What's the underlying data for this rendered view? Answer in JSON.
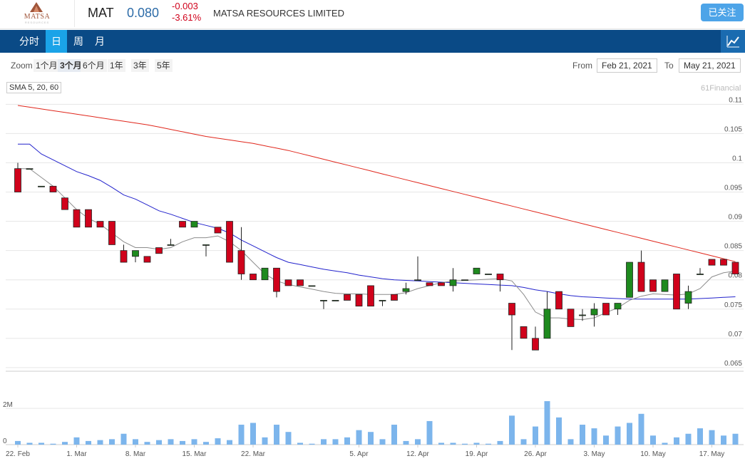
{
  "header": {
    "logo_text": "MATSA",
    "logo_sub": "RESOURCES",
    "ticker": "MAT",
    "price": "0.080",
    "change": "-0.003",
    "change_pct": "-3.61%",
    "company": "MATSA RESOURCES LIMITED",
    "follow_label": "已关注"
  },
  "nav": {
    "tabs": [
      {
        "label": "分时"
      },
      {
        "label": "日"
      },
      {
        "label": "周"
      },
      {
        "label": "月"
      }
    ],
    "active_tab": "日"
  },
  "toolbar": {
    "zoom_label": "Zoom",
    "zoom_options": [
      "1个月",
      "3个月",
      "6个月",
      "1年",
      "3年",
      "5年"
    ],
    "zoom_selected": "3个月",
    "from_label": "From",
    "from_value": "Feb 21, 2021",
    "to_label": "To",
    "to_value": "May 21, 2021"
  },
  "indicator_label": "SMA 5, 20, 60",
  "credit": "61Financial",
  "colors": {
    "up": "#1e8a1e",
    "down": "#d0021b",
    "sma5": "#8c8c8c",
    "sma20": "#2222cc",
    "sma60": "#e0261b",
    "volume": "#7cb5ec",
    "nav_bg": "#0a4a86",
    "nav_active": "#1aa3e8"
  },
  "chart_data": {
    "type": "candlestick",
    "y_ticks": [
      "0.11",
      "0.105",
      "0.1",
      "0.095",
      "0.09",
      "0.085",
      "0.08",
      "0.075",
      "0.07",
      "0.065"
    ],
    "ylim": [
      0.0645,
      0.1115
    ],
    "volume_ticks": [
      "2M",
      "0"
    ],
    "volume_lim": [
      0,
      3500000
    ],
    "x_ticks": [
      "22. Feb",
      "1. Mar",
      "8. Mar",
      "15. Mar",
      "22. Mar",
      "5. Apr",
      "12. Apr",
      "19. Apr",
      "26. Apr",
      "3. May",
      "10. May",
      "17. May"
    ],
    "candles": [
      {
        "date": "22. Feb",
        "o": 0.099,
        "h": 0.1,
        "l": 0.095,
        "c": 0.095,
        "v": 200000
      },
      {
        "date": "23. Feb",
        "o": 0.099,
        "h": 0.099,
        "l": 0.099,
        "c": 0.099,
        "v": 100000
      },
      {
        "date": "24. Feb",
        "o": 0.096,
        "h": 0.096,
        "l": 0.096,
        "c": 0.096,
        "v": 100000
      },
      {
        "date": "25. Feb",
        "o": 0.096,
        "h": 0.096,
        "l": 0.095,
        "c": 0.095,
        "v": 50000
      },
      {
        "date": "26. Feb",
        "o": 0.094,
        "h": 0.094,
        "l": 0.092,
        "c": 0.092,
        "v": 150000
      },
      {
        "date": "1. Mar",
        "o": 0.092,
        "h": 0.092,
        "l": 0.089,
        "c": 0.089,
        "v": 400000
      },
      {
        "date": "2. Mar",
        "o": 0.092,
        "h": 0.092,
        "l": 0.089,
        "c": 0.089,
        "v": 200000
      },
      {
        "date": "3. Mar",
        "o": 0.09,
        "h": 0.09,
        "l": 0.089,
        "c": 0.089,
        "v": 250000
      },
      {
        "date": "4. Mar",
        "o": 0.09,
        "h": 0.09,
        "l": 0.086,
        "c": 0.086,
        "v": 300000
      },
      {
        "date": "5. Mar",
        "o": 0.085,
        "h": 0.086,
        "l": 0.083,
        "c": 0.083,
        "v": 600000
      },
      {
        "date": "8. Mar",
        "o": 0.084,
        "h": 0.085,
        "l": 0.083,
        "c": 0.085,
        "v": 300000
      },
      {
        "date": "9. Mar",
        "o": 0.084,
        "h": 0.084,
        "l": 0.083,
        "c": 0.083,
        "v": 150000
      },
      {
        "date": "10. Mar",
        "o": 0.0855,
        "h": 0.0855,
        "l": 0.0845,
        "c": 0.0845,
        "v": 250000
      },
      {
        "date": "11. Mar",
        "o": 0.086,
        "h": 0.087,
        "l": 0.086,
        "c": 0.086,
        "v": 300000
      },
      {
        "date": "12. Mar",
        "o": 0.09,
        "h": 0.09,
        "l": 0.089,
        "c": 0.089,
        "v": 200000
      },
      {
        "date": "15. Mar",
        "o": 0.089,
        "h": 0.09,
        "l": 0.089,
        "c": 0.09,
        "v": 300000
      },
      {
        "date": "16. Mar",
        "o": 0.086,
        "h": 0.086,
        "l": 0.084,
        "c": 0.086,
        "v": 150000
      },
      {
        "date": "17. Mar",
        "o": 0.089,
        "h": 0.089,
        "l": 0.088,
        "c": 0.088,
        "v": 350000
      },
      {
        "date": "18. Mar",
        "o": 0.09,
        "h": 0.09,
        "l": 0.083,
        "c": 0.083,
        "v": 250000
      },
      {
        "date": "19. Mar",
        "o": 0.085,
        "h": 0.089,
        "l": 0.08,
        "c": 0.081,
        "v": 1100000
      },
      {
        "date": "22. Mar",
        "o": 0.081,
        "h": 0.081,
        "l": 0.08,
        "c": 0.08,
        "v": 1200000
      },
      {
        "date": "23. Mar",
        "o": 0.08,
        "h": 0.082,
        "l": 0.08,
        "c": 0.082,
        "v": 400000
      },
      {
        "date": "24. Mar",
        "o": 0.082,
        "h": 0.082,
        "l": 0.077,
        "c": 0.078,
        "v": 1100000
      },
      {
        "date": "25. Mar",
        "o": 0.08,
        "h": 0.08,
        "l": 0.079,
        "c": 0.079,
        "v": 700000
      },
      {
        "date": "26. Mar",
        "o": 0.08,
        "h": 0.08,
        "l": 0.079,
        "c": 0.079,
        "v": 100000
      },
      {
        "date": "29. Mar",
        "o": 0.079,
        "h": 0.079,
        "l": 0.079,
        "c": 0.079,
        "v": 50000
      },
      {
        "date": "30. Mar",
        "o": 0.0765,
        "h": 0.0765,
        "l": 0.075,
        "c": 0.0765,
        "v": 300000
      },
      {
        "date": "31. Mar",
        "o": 0.0765,
        "h": 0.0765,
        "l": 0.0765,
        "c": 0.0765,
        "v": 300000
      },
      {
        "date": "1. Apr",
        "o": 0.0775,
        "h": 0.0775,
        "l": 0.0765,
        "c": 0.0765,
        "v": 400000
      },
      {
        "date": "5. Apr",
        "o": 0.0775,
        "h": 0.0775,
        "l": 0.0755,
        "c": 0.0755,
        "v": 800000
      },
      {
        "date": "6. Apr",
        "o": 0.079,
        "h": 0.079,
        "l": 0.0755,
        "c": 0.0755,
        "v": 700000
      },
      {
        "date": "7. Apr",
        "o": 0.0765,
        "h": 0.0765,
        "l": 0.0755,
        "c": 0.0765,
        "v": 300000
      },
      {
        "date": "8. Apr",
        "o": 0.0775,
        "h": 0.0775,
        "l": 0.0765,
        "c": 0.0765,
        "v": 1100000
      },
      {
        "date": "9. Apr",
        "o": 0.078,
        "h": 0.0795,
        "l": 0.0775,
        "c": 0.0785,
        "v": 200000
      },
      {
        "date": "12. Apr",
        "o": 0.08,
        "h": 0.084,
        "l": 0.08,
        "c": 0.08,
        "v": 300000
      },
      {
        "date": "13. Apr",
        "o": 0.0795,
        "h": 0.0795,
        "l": 0.079,
        "c": 0.079,
        "v": 1300000
      },
      {
        "date": "14. Apr",
        "o": 0.0795,
        "h": 0.0795,
        "l": 0.079,
        "c": 0.079,
        "v": 100000
      },
      {
        "date": "15. Apr",
        "o": 0.079,
        "h": 0.082,
        "l": 0.078,
        "c": 0.08,
        "v": 100000
      },
      {
        "date": "16. Apr",
        "o": 0.08,
        "h": 0.08,
        "l": 0.08,
        "c": 0.08,
        "v": 50000
      },
      {
        "date": "19. Apr",
        "o": 0.081,
        "h": 0.082,
        "l": 0.081,
        "c": 0.082,
        "v": 100000
      },
      {
        "date": "20. Apr",
        "o": 0.081,
        "h": 0.081,
        "l": 0.081,
        "c": 0.081,
        "v": 50000
      },
      {
        "date": "21. Apr",
        "o": 0.081,
        "h": 0.081,
        "l": 0.078,
        "c": 0.08,
        "v": 200000
      },
      {
        "date": "22. Apr",
        "o": 0.076,
        "h": 0.076,
        "l": 0.068,
        "c": 0.074,
        "v": 1600000
      },
      {
        "date": "23. Apr",
        "o": 0.072,
        "h": 0.072,
        "l": 0.07,
        "c": 0.07,
        "v": 300000
      },
      {
        "date": "26. Apr",
        "o": 0.07,
        "h": 0.072,
        "l": 0.068,
        "c": 0.068,
        "v": 1000000
      },
      {
        "date": "27. Apr",
        "o": 0.07,
        "h": 0.078,
        "l": 0.07,
        "c": 0.075,
        "v": 2400000
      },
      {
        "date": "28. Apr",
        "o": 0.078,
        "h": 0.078,
        "l": 0.075,
        "c": 0.075,
        "v": 1500000
      },
      {
        "date": "29. Apr",
        "o": 0.075,
        "h": 0.075,
        "l": 0.072,
        "c": 0.072,
        "v": 300000
      },
      {
        "date": "30. Apr",
        "o": 0.074,
        "h": 0.075,
        "l": 0.073,
        "c": 0.074,
        "v": 1100000
      },
      {
        "date": "3. May",
        "o": 0.074,
        "h": 0.076,
        "l": 0.072,
        "c": 0.075,
        "v": 900000
      },
      {
        "date": "4. May",
        "o": 0.076,
        "h": 0.076,
        "l": 0.074,
        "c": 0.074,
        "v": 500000
      },
      {
        "date": "5. May",
        "o": 0.075,
        "h": 0.076,
        "l": 0.074,
        "c": 0.076,
        "v": 1000000
      },
      {
        "date": "6. May",
        "o": 0.077,
        "h": 0.083,
        "l": 0.077,
        "c": 0.083,
        "v": 1200000
      },
      {
        "date": "7. May",
        "o": 0.083,
        "h": 0.085,
        "l": 0.078,
        "c": 0.078,
        "v": 1700000
      },
      {
        "date": "10. May",
        "o": 0.08,
        "h": 0.08,
        "l": 0.078,
        "c": 0.078,
        "v": 500000
      },
      {
        "date": "11. May",
        "o": 0.078,
        "h": 0.08,
        "l": 0.078,
        "c": 0.08,
        "v": 100000
      },
      {
        "date": "12. May",
        "o": 0.081,
        "h": 0.081,
        "l": 0.075,
        "c": 0.075,
        "v": 400000
      },
      {
        "date": "13. May",
        "o": 0.076,
        "h": 0.079,
        "l": 0.075,
        "c": 0.078,
        "v": 600000
      },
      {
        "date": "14. May",
        "o": 0.081,
        "h": 0.082,
        "l": 0.081,
        "c": 0.081,
        "v": 900000
      },
      {
        "date": "17. May",
        "o": 0.0835,
        "h": 0.0835,
        "l": 0.0825,
        "c": 0.0825,
        "v": 800000
      },
      {
        "date": "18. May",
        "o": 0.0835,
        "h": 0.0835,
        "l": 0.0825,
        "c": 0.0825,
        "v": 500000
      },
      {
        "date": "19. May",
        "o": 0.083,
        "h": 0.083,
        "l": 0.081,
        "c": 0.081,
        "v": 600000
      }
    ],
    "sma5": [
      0.099,
      0.099,
      0.0975,
      0.096,
      0.094,
      0.092,
      0.0905,
      0.0895,
      0.088,
      0.0865,
      0.0855,
      0.0855,
      0.0852,
      0.0855,
      0.0865,
      0.0872,
      0.0872,
      0.0875,
      0.0865,
      0.085,
      0.083,
      0.081,
      0.0798,
      0.0792,
      0.0788,
      0.0784,
      0.078,
      0.0777,
      0.0776,
      0.0776,
      0.0775,
      0.0775,
      0.0775,
      0.0778,
      0.0785,
      0.079,
      0.0795,
      0.0798,
      0.0799,
      0.08,
      0.0801,
      0.0802,
      0.0798,
      0.0775,
      0.0745,
      0.0735,
      0.0735,
      0.0733,
      0.0732,
      0.0735,
      0.0744,
      0.0752,
      0.0765,
      0.0772,
      0.0776,
      0.0775,
      0.0774,
      0.0776,
      0.0785,
      0.0805,
      0.0812,
      0.0815
    ],
    "sma20": [
      0.1032,
      0.1032,
      0.1015,
      0.1005,
      0.0995,
      0.0985,
      0.0978,
      0.097,
      0.0958,
      0.0945,
      0.0938,
      0.0928,
      0.0918,
      0.0912,
      0.0905,
      0.0898,
      0.0893,
      0.0888,
      0.088,
      0.0868,
      0.0858,
      0.0848,
      0.0838,
      0.083,
      0.0826,
      0.0822,
      0.0818,
      0.0815,
      0.0812,
      0.0808,
      0.0805,
      0.0802,
      0.08,
      0.0799,
      0.0798,
      0.0797,
      0.0796,
      0.0795,
      0.0794,
      0.0793,
      0.0792,
      0.0791,
      0.079,
      0.0787,
      0.0783,
      0.078,
      0.0776,
      0.0773,
      0.0771,
      0.077,
      0.0769,
      0.0768,
      0.0767,
      0.0767,
      0.0767,
      0.0767,
      0.0767,
      0.0767,
      0.0768,
      0.0769,
      0.077,
      0.0771
    ],
    "sma60": [
      0.1098,
      0.1095,
      0.1092,
      0.1089,
      0.1086,
      0.1083,
      0.108,
      0.1077,
      0.1074,
      0.1071,
      0.1068,
      0.1065,
      0.1061,
      0.1057,
      0.1053,
      0.1049,
      0.1045,
      0.1042,
      0.1039,
      0.1036,
      0.1033,
      0.1029,
      0.1025,
      0.1021,
      0.1016,
      0.1011,
      0.1006,
      0.1001,
      0.0996,
      0.0991,
      0.0986,
      0.0981,
      0.0976,
      0.0971,
      0.0966,
      0.0961,
      0.0956,
      0.0951,
      0.0946,
      0.0941,
      0.0936,
      0.0931,
      0.0926,
      0.0921,
      0.0916,
      0.0911,
      0.0906,
      0.0901,
      0.0896,
      0.0891,
      0.0886,
      0.0881,
      0.0876,
      0.0871,
      0.0866,
      0.0861,
      0.0856,
      0.0851,
      0.0846,
      0.0841,
      0.0836,
      0.0831
    ]
  }
}
